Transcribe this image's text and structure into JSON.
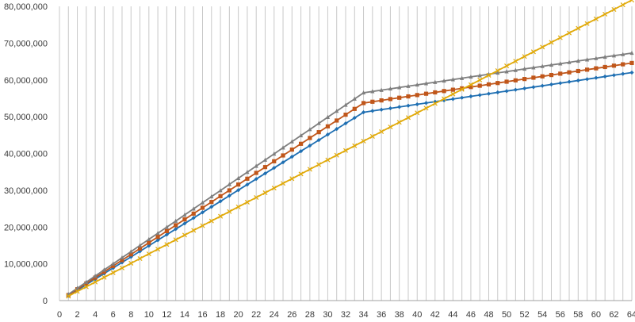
{
  "chart_data": {
    "type": "line",
    "title": "",
    "xlabel": "",
    "ylabel": "",
    "grid": "vertical",
    "legend": "none",
    "xlim": [
      0,
      64
    ],
    "ylim": [
      0,
      80000000
    ],
    "x_ticks": [
      "0",
      "2",
      "4",
      "6",
      "8",
      "10",
      "12",
      "14",
      "16",
      "18",
      "20",
      "22",
      "24",
      "26",
      "28",
      "30",
      "32",
      "34",
      "36",
      "38",
      "40",
      "42",
      "44",
      "46",
      "48",
      "50",
      "52",
      "54",
      "56",
      "58",
      "60",
      "62",
      "64"
    ],
    "y_ticks": [
      "0",
      "10,000,000",
      "20,000,000",
      "30,000,000",
      "40,000,000",
      "50,000,000",
      "60,000,000",
      "70,000,000",
      "80,000,000"
    ],
    "series": [
      {
        "color": "#1f6fb2",
        "marker": "diamond",
        "points": [
          [
            1,
            1300000
          ],
          [
            34,
            51200000
          ],
          [
            64,
            62000000
          ]
        ]
      },
      {
        "color": "#c0561a",
        "marker": "square",
        "points": [
          [
            1,
            1500000
          ],
          [
            34,
            53700000
          ],
          [
            64,
            64600000
          ]
        ]
      },
      {
        "color": "#7f7f7f",
        "marker": "triangle",
        "points": [
          [
            1,
            1700000
          ],
          [
            34,
            56500000
          ],
          [
            64,
            67300000
          ]
        ]
      },
      {
        "color": "#e1aa0a",
        "marker": "x",
        "points": [
          [
            1,
            1200000
          ],
          [
            64,
            81700000
          ]
        ]
      }
    ]
  }
}
